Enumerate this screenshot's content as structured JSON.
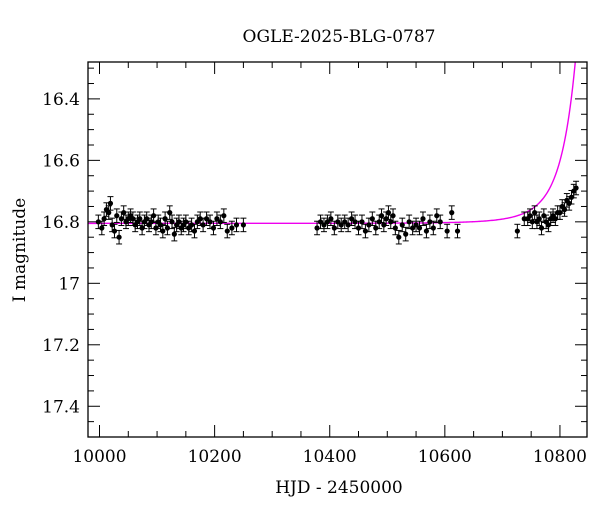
{
  "chart_data": {
    "type": "scatter",
    "title": "OGLE-2025-BLG-0787",
    "xlabel": "HJD - 2450000",
    "ylabel": "I magnitude",
    "xlim": [
      9980,
      10847
    ],
    "ylim": [
      17.5,
      16.28
    ],
    "y_inverted": true,
    "x_ticks": [
      10000,
      10200,
      10400,
      10600,
      10800
    ],
    "x_minor_step": 50,
    "y_ticks": [
      16.4,
      16.6,
      16.8,
      17,
      17.2,
      17.4
    ],
    "y_tick_labels": [
      "16.4",
      "16.6",
      "16.8",
      "17",
      "17.2",
      "17.4"
    ],
    "y_minor_step": 0.05,
    "grid": false,
    "colors": {
      "points": "#000000",
      "model": "#ee00ee"
    },
    "model": {
      "name": "model",
      "baseline": 16.805,
      "peak_time": 10862,
      "u0": 0.2,
      "tE": 50
    },
    "series": [
      {
        "name": "data",
        "error": 0.022,
        "points": [
          [
            9998,
            16.8
          ],
          [
            10004,
            16.82
          ],
          [
            10008,
            16.79
          ],
          [
            10012,
            16.76
          ],
          [
            10016,
            16.77
          ],
          [
            10019,
            16.74
          ],
          [
            10022,
            16.81
          ],
          [
            10026,
            16.83
          ],
          [
            10030,
            16.78
          ],
          [
            10034,
            16.85
          ],
          [
            10038,
            16.79
          ],
          [
            10042,
            16.77
          ],
          [
            10046,
            16.8
          ],
          [
            10050,
            16.79
          ],
          [
            10054,
            16.78
          ],
          [
            10058,
            16.79
          ],
          [
            10062,
            16.81
          ],
          [
            10066,
            16.8
          ],
          [
            10070,
            16.79
          ],
          [
            10074,
            16.82
          ],
          [
            10078,
            16.8
          ],
          [
            10082,
            16.79
          ],
          [
            10086,
            16.81
          ],
          [
            10090,
            16.8
          ],
          [
            10094,
            16.78
          ],
          [
            10098,
            16.82
          ],
          [
            10102,
            16.8
          ],
          [
            10106,
            16.81
          ],
          [
            10110,
            16.83
          ],
          [
            10114,
            16.79
          ],
          [
            10118,
            16.82
          ],
          [
            10122,
            16.77
          ],
          [
            10126,
            16.8
          ],
          [
            10130,
            16.84
          ],
          [
            10134,
            16.81
          ],
          [
            10138,
            16.8
          ],
          [
            10142,
            16.82
          ],
          [
            10146,
            16.81
          ],
          [
            10150,
            16.8
          ],
          [
            10155,
            16.82
          ],
          [
            10160,
            16.81
          ],
          [
            10165,
            16.83
          ],
          [
            10170,
            16.8
          ],
          [
            10175,
            16.79
          ],
          [
            10180,
            16.81
          ],
          [
            10186,
            16.79
          ],
          [
            10192,
            16.8
          ],
          [
            10198,
            16.82
          ],
          [
            10204,
            16.79
          ],
          [
            10210,
            16.8
          ],
          [
            10216,
            16.78
          ],
          [
            10222,
            16.83
          ],
          [
            10230,
            16.82
          ],
          [
            10238,
            16.81
          ],
          [
            10250,
            16.81
          ],
          [
            10378,
            16.82
          ],
          [
            10384,
            16.8
          ],
          [
            10390,
            16.81
          ],
          [
            10396,
            16.8
          ],
          [
            10402,
            16.79
          ],
          [
            10408,
            16.82
          ],
          [
            10414,
            16.8
          ],
          [
            10420,
            16.81
          ],
          [
            10426,
            16.8
          ],
          [
            10432,
            16.81
          ],
          [
            10438,
            16.79
          ],
          [
            10444,
            16.8
          ],
          [
            10450,
            16.82
          ],
          [
            10456,
            16.8
          ],
          [
            10462,
            16.83
          ],
          [
            10468,
            16.81
          ],
          [
            10474,
            16.79
          ],
          [
            10480,
            16.82
          ],
          [
            10486,
            16.8
          ],
          [
            10490,
            16.78
          ],
          [
            10494,
            16.81
          ],
          [
            10498,
            16.79
          ],
          [
            10502,
            16.77
          ],
          [
            10506,
            16.8
          ],
          [
            10510,
            16.78
          ],
          [
            10514,
            16.82
          ],
          [
            10520,
            16.85
          ],
          [
            10526,
            16.81
          ],
          [
            10532,
            16.84
          ],
          [
            10538,
            16.8
          ],
          [
            10544,
            16.82
          ],
          [
            10550,
            16.81
          ],
          [
            10556,
            16.82
          ],
          [
            10562,
            16.79
          ],
          [
            10568,
            16.83
          ],
          [
            10574,
            16.8
          ],
          [
            10580,
            16.82
          ],
          [
            10586,
            16.78
          ],
          [
            10592,
            16.8
          ],
          [
            10604,
            16.83
          ],
          [
            10612,
            16.77
          ],
          [
            10622,
            16.83
          ],
          [
            10726,
            16.83
          ],
          [
            10738,
            16.79
          ],
          [
            10744,
            16.79
          ],
          [
            10748,
            16.78
          ],
          [
            10752,
            16.8
          ],
          [
            10756,
            16.77
          ],
          [
            10760,
            16.8
          ],
          [
            10764,
            16.79
          ],
          [
            10768,
            16.82
          ],
          [
            10772,
            16.78
          ],
          [
            10776,
            16.8
          ],
          [
            10780,
            16.81
          ],
          [
            10784,
            16.79
          ],
          [
            10788,
            16.78
          ],
          [
            10792,
            16.79
          ],
          [
            10796,
            16.77
          ],
          [
            10800,
            16.77
          ],
          [
            10804,
            16.75
          ],
          [
            10808,
            16.76
          ],
          [
            10812,
            16.73
          ],
          [
            10816,
            16.74
          ],
          [
            10820,
            16.72
          ],
          [
            10824,
            16.7
          ],
          [
            10828,
            16.69
          ]
        ]
      }
    ]
  }
}
